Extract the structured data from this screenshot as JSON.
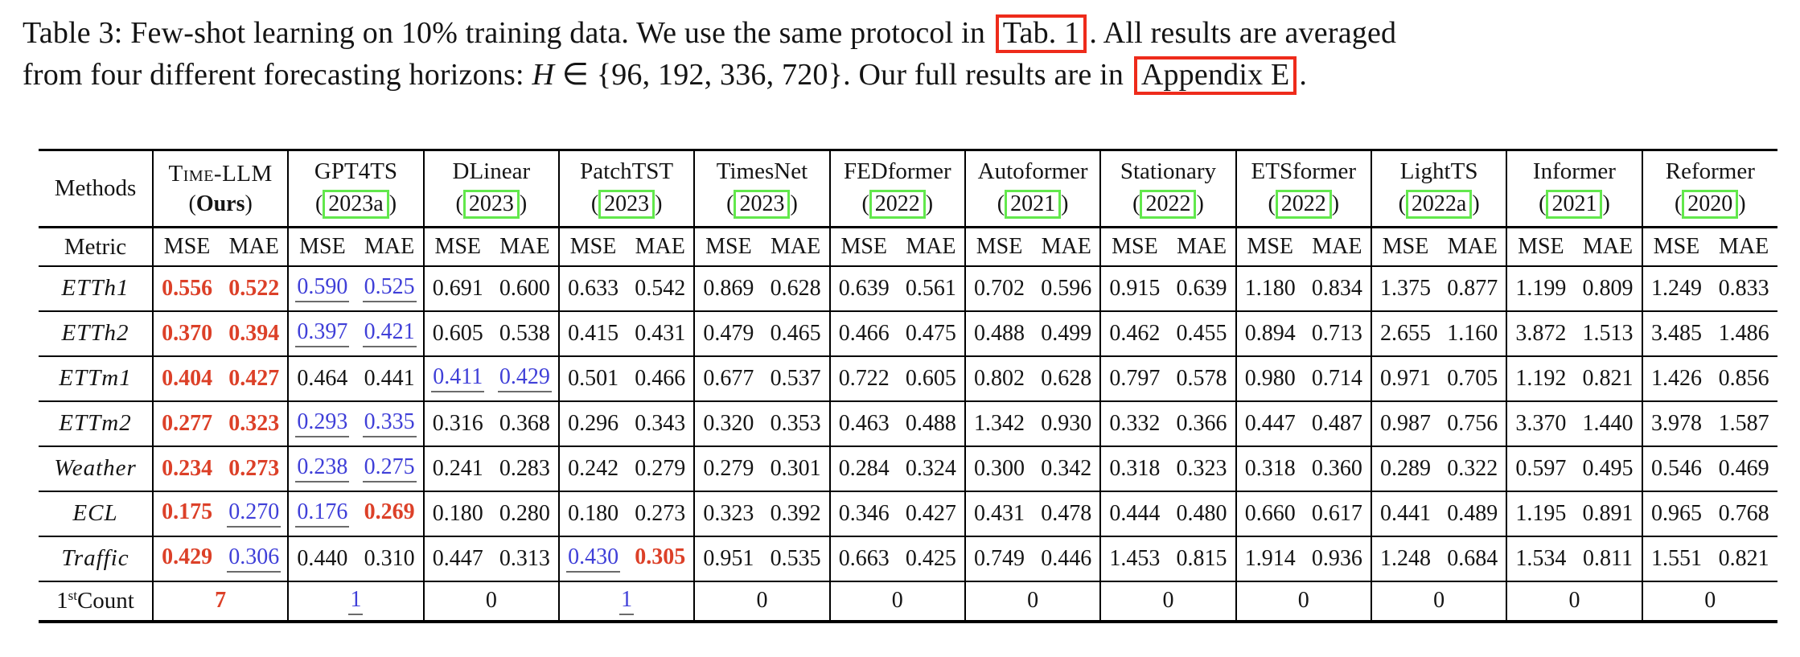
{
  "colors": {
    "best": "#dc4028",
    "second": "#3f3fd8",
    "second_underline": "#6b6b6b",
    "citation_box_green": "#62e84c",
    "caption_link_box_red": "#ee2b1b",
    "rule": "#000000"
  },
  "caption": {
    "seg1": "Table 3: Few-shot learning on 10% training data. We use the same protocol in ",
    "link1": "Tab. 1",
    "seg2": ". All results are averaged",
    "seg3": "from four different forecasting horizons: ",
    "math_var": "H",
    "math_rest": " ∈ {96, 192, 336, 720}",
    "seg4": ". Our full results are in ",
    "link2": "Appendix E",
    "seg5": "."
  },
  "table": {
    "corner_label": "Methods",
    "metric_label": "Metric",
    "metrics": [
      "MSE",
      "MAE"
    ],
    "methods": [
      {
        "name": "Time-LLM",
        "smallcaps": true,
        "paren": "Ours",
        "paren_bold": true,
        "boxed": false
      },
      {
        "name": "GPT4TS",
        "paren": "2023a",
        "boxed": true
      },
      {
        "name": "DLinear",
        "paren": "2023",
        "boxed": true
      },
      {
        "name": "PatchTST",
        "paren": "2023",
        "boxed": true
      },
      {
        "name": "TimesNet",
        "paren": "2023",
        "boxed": true
      },
      {
        "name": "FEDformer",
        "paren": "2022",
        "boxed": true
      },
      {
        "name": "Autoformer",
        "paren": "2021",
        "boxed": true
      },
      {
        "name": "Stationary",
        "paren": "2022",
        "boxed": true
      },
      {
        "name": "ETSformer",
        "paren": "2022",
        "boxed": true
      },
      {
        "name": "LightTS",
        "paren": "2022a",
        "boxed": true
      },
      {
        "name": "Informer",
        "paren": "2021",
        "boxed": true
      },
      {
        "name": "Reformer",
        "paren": "2020",
        "boxed": true
      }
    ],
    "rows": [
      {
        "label": "ETTh1",
        "values": [
          [
            "0.556",
            "best"
          ],
          [
            "0.522",
            "best"
          ],
          [
            "0.590",
            "second"
          ],
          [
            "0.525",
            "second"
          ],
          [
            "0.691",
            null
          ],
          [
            "0.600",
            null
          ],
          [
            "0.633",
            null
          ],
          [
            "0.542",
            null
          ],
          [
            "0.869",
            null
          ],
          [
            "0.628",
            null
          ],
          [
            "0.639",
            null
          ],
          [
            "0.561",
            null
          ],
          [
            "0.702",
            null
          ],
          [
            "0.596",
            null
          ],
          [
            "0.915",
            null
          ],
          [
            "0.639",
            null
          ],
          [
            "1.180",
            null
          ],
          [
            "0.834",
            null
          ],
          [
            "1.375",
            null
          ],
          [
            "0.877",
            null
          ],
          [
            "1.199",
            null
          ],
          [
            "0.809",
            null
          ],
          [
            "1.249",
            null
          ],
          [
            "0.833",
            null
          ]
        ]
      },
      {
        "label": "ETTh2",
        "values": [
          [
            "0.370",
            "best"
          ],
          [
            "0.394",
            "best"
          ],
          [
            "0.397",
            "second"
          ],
          [
            "0.421",
            "second"
          ],
          [
            "0.605",
            null
          ],
          [
            "0.538",
            null
          ],
          [
            "0.415",
            null
          ],
          [
            "0.431",
            null
          ],
          [
            "0.479",
            null
          ],
          [
            "0.465",
            null
          ],
          [
            "0.466",
            null
          ],
          [
            "0.475",
            null
          ],
          [
            "0.488",
            null
          ],
          [
            "0.499",
            null
          ],
          [
            "0.462",
            null
          ],
          [
            "0.455",
            null
          ],
          [
            "0.894",
            null
          ],
          [
            "0.713",
            null
          ],
          [
            "2.655",
            null
          ],
          [
            "1.160",
            null
          ],
          [
            "3.872",
            null
          ],
          [
            "1.513",
            null
          ],
          [
            "3.485",
            null
          ],
          [
            "1.486",
            null
          ]
        ]
      },
      {
        "label": "ETTm1",
        "values": [
          [
            "0.404",
            "best"
          ],
          [
            "0.427",
            "best"
          ],
          [
            "0.464",
            null
          ],
          [
            "0.441",
            null
          ],
          [
            "0.411",
            "second"
          ],
          [
            "0.429",
            "second"
          ],
          [
            "0.501",
            null
          ],
          [
            "0.466",
            null
          ],
          [
            "0.677",
            null
          ],
          [
            "0.537",
            null
          ],
          [
            "0.722",
            null
          ],
          [
            "0.605",
            null
          ],
          [
            "0.802",
            null
          ],
          [
            "0.628",
            null
          ],
          [
            "0.797",
            null
          ],
          [
            "0.578",
            null
          ],
          [
            "0.980",
            null
          ],
          [
            "0.714",
            null
          ],
          [
            "0.971",
            null
          ],
          [
            "0.705",
            null
          ],
          [
            "1.192",
            null
          ],
          [
            "0.821",
            null
          ],
          [
            "1.426",
            null
          ],
          [
            "0.856",
            null
          ]
        ]
      },
      {
        "label": "ETTm2",
        "values": [
          [
            "0.277",
            "best"
          ],
          [
            "0.323",
            "best"
          ],
          [
            "0.293",
            "second"
          ],
          [
            "0.335",
            "second"
          ],
          [
            "0.316",
            null
          ],
          [
            "0.368",
            null
          ],
          [
            "0.296",
            null
          ],
          [
            "0.343",
            null
          ],
          [
            "0.320",
            null
          ],
          [
            "0.353",
            null
          ],
          [
            "0.463",
            null
          ],
          [
            "0.488",
            null
          ],
          [
            "1.342",
            null
          ],
          [
            "0.930",
            null
          ],
          [
            "0.332",
            null
          ],
          [
            "0.366",
            null
          ],
          [
            "0.447",
            null
          ],
          [
            "0.487",
            null
          ],
          [
            "0.987",
            null
          ],
          [
            "0.756",
            null
          ],
          [
            "3.370",
            null
          ],
          [
            "1.440",
            null
          ],
          [
            "3.978",
            null
          ],
          [
            "1.587",
            null
          ]
        ]
      },
      {
        "label": "Weather",
        "values": [
          [
            "0.234",
            "best"
          ],
          [
            "0.273",
            "best"
          ],
          [
            "0.238",
            "second"
          ],
          [
            "0.275",
            "second"
          ],
          [
            "0.241",
            null
          ],
          [
            "0.283",
            null
          ],
          [
            "0.242",
            null
          ],
          [
            "0.279",
            null
          ],
          [
            "0.279",
            null
          ],
          [
            "0.301",
            null
          ],
          [
            "0.284",
            null
          ],
          [
            "0.324",
            null
          ],
          [
            "0.300",
            null
          ],
          [
            "0.342",
            null
          ],
          [
            "0.318",
            null
          ],
          [
            "0.323",
            null
          ],
          [
            "0.318",
            null
          ],
          [
            "0.360",
            null
          ],
          [
            "0.289",
            null
          ],
          [
            "0.322",
            null
          ],
          [
            "0.597",
            null
          ],
          [
            "0.495",
            null
          ],
          [
            "0.546",
            null
          ],
          [
            "0.469",
            null
          ]
        ]
      },
      {
        "label": "ECL",
        "values": [
          [
            "0.175",
            "best"
          ],
          [
            "0.270",
            "second"
          ],
          [
            "0.176",
            "second"
          ],
          [
            "0.269",
            "best"
          ],
          [
            "0.180",
            null
          ],
          [
            "0.280",
            null
          ],
          [
            "0.180",
            null
          ],
          [
            "0.273",
            null
          ],
          [
            "0.323",
            null
          ],
          [
            "0.392",
            null
          ],
          [
            "0.346",
            null
          ],
          [
            "0.427",
            null
          ],
          [
            "0.431",
            null
          ],
          [
            "0.478",
            null
          ],
          [
            "0.444",
            null
          ],
          [
            "0.480",
            null
          ],
          [
            "0.660",
            null
          ],
          [
            "0.617",
            null
          ],
          [
            "0.441",
            null
          ],
          [
            "0.489",
            null
          ],
          [
            "1.195",
            null
          ],
          [
            "0.891",
            null
          ],
          [
            "0.965",
            null
          ],
          [
            "0.768",
            null
          ]
        ]
      },
      {
        "label": "Traffic",
        "values": [
          [
            "0.429",
            "best"
          ],
          [
            "0.306",
            "second"
          ],
          [
            "0.440",
            null
          ],
          [
            "0.310",
            null
          ],
          [
            "0.447",
            null
          ],
          [
            "0.313",
            null
          ],
          [
            "0.430",
            "second"
          ],
          [
            "0.305",
            "best"
          ],
          [
            "0.951",
            null
          ],
          [
            "0.535",
            null
          ],
          [
            "0.663",
            null
          ],
          [
            "0.425",
            null
          ],
          [
            "0.749",
            null
          ],
          [
            "0.446",
            null
          ],
          [
            "1.453",
            null
          ],
          [
            "0.815",
            null
          ],
          [
            "1.914",
            null
          ],
          [
            "0.936",
            null
          ],
          [
            "1.248",
            null
          ],
          [
            "0.684",
            null
          ],
          [
            "1.534",
            null
          ],
          [
            "0.811",
            null
          ],
          [
            "1.551",
            null
          ],
          [
            "0.821",
            null
          ]
        ]
      }
    ],
    "count_row": {
      "label_base": "1",
      "label_sup": "st",
      "label_rest": "Count",
      "values": [
        [
          "7",
          "best"
        ],
        [
          "1",
          "second"
        ],
        [
          "0",
          null
        ],
        [
          "1",
          "second"
        ],
        [
          "0",
          null
        ],
        [
          "0",
          null
        ],
        [
          "0",
          null
        ],
        [
          "0",
          null
        ],
        [
          "0",
          null
        ],
        [
          "0",
          null
        ],
        [
          "0",
          null
        ],
        [
          "0",
          null
        ]
      ]
    }
  }
}
